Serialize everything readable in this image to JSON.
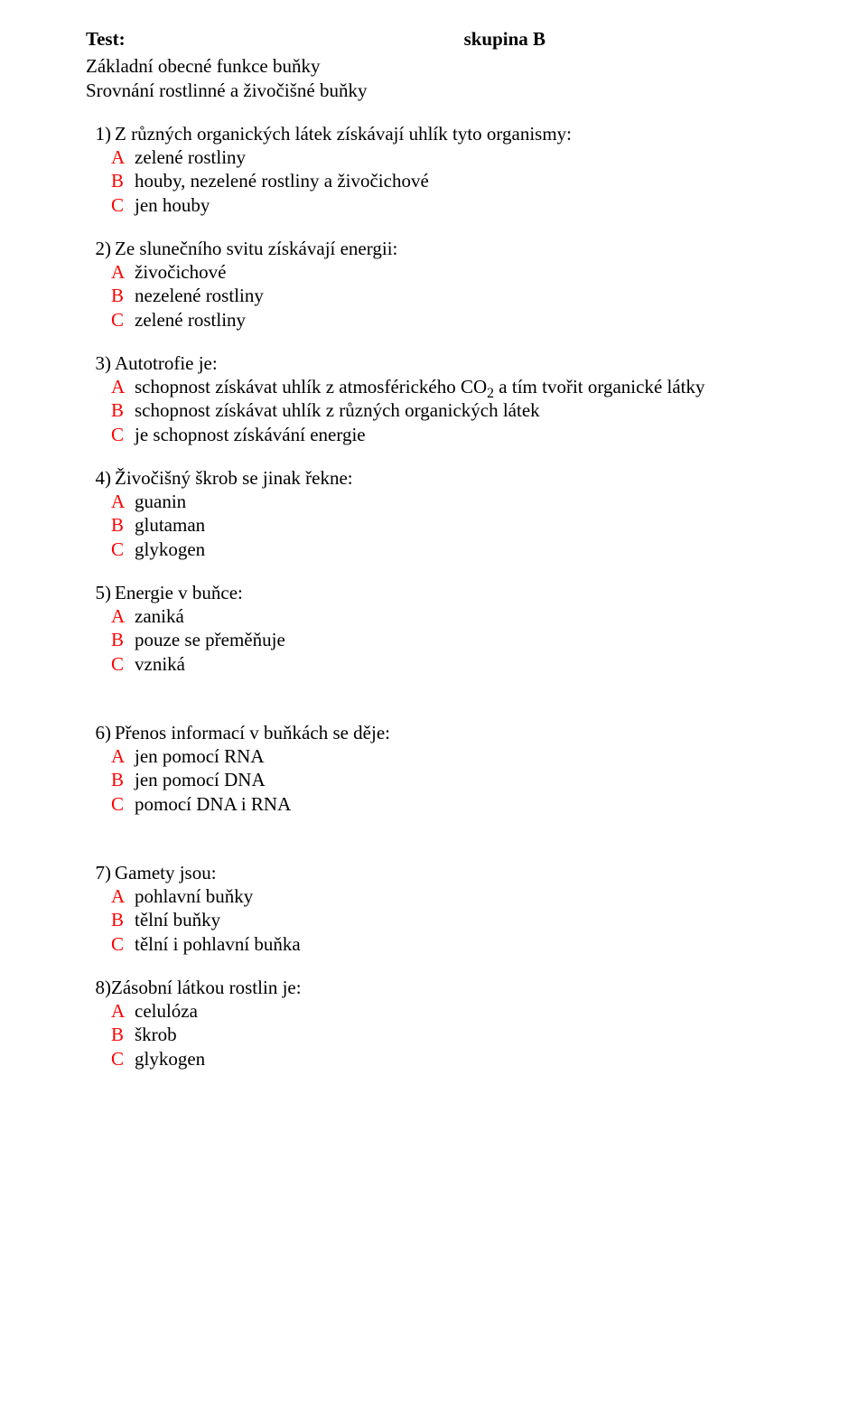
{
  "header": {
    "left": "Test:",
    "right": "skupina B"
  },
  "intro": [
    "Základní obecné funkce buňky",
    "Srovnání rostlinné a živočišné buňky"
  ],
  "questions": [
    {
      "num": "1)",
      "text": "Z různých organických látek získávají uhlík tyto organismy:",
      "opts": [
        {
          "l": "A",
          "t": "zelené rostliny"
        },
        {
          "l": "B",
          "t": "houby, nezelené rostliny a živočichové"
        },
        {
          "l": "C",
          "t": "jen houby"
        }
      ]
    },
    {
      "num": "2)",
      "text": "Ze slunečního svitu získávají energii:",
      "opts": [
        {
          "l": "A",
          "t": "živočichové"
        },
        {
          "l": "B",
          "t": "nezelené rostliny"
        },
        {
          "l": "C",
          "t": "zelené rostliny"
        }
      ]
    },
    {
      "num": "3)",
      "text": "Autotrofie je:",
      "opts": [
        {
          "l": "A",
          "t_pre": "schopnost získávat uhlík z atmosférického CO",
          "t_sub": "2",
          "t_post": " a tím tvořit organické látky"
        },
        {
          "l": "B",
          "t": "schopnost získávat uhlík z různých organických látek"
        },
        {
          "l": "C",
          "t": "je schopnost získávání energie"
        }
      ]
    },
    {
      "num": "4)",
      "text": "Živočišný škrob se jinak řekne:",
      "opts": [
        {
          "l": "A",
          "t": "guanin"
        },
        {
          "l": "B",
          "t": "glutaman"
        },
        {
          "l": "C",
          "t": "glykogen"
        }
      ]
    },
    {
      "num": "5)",
      "text": "Energie v buňce:",
      "opts": [
        {
          "l": "A",
          "t": "zaniká"
        },
        {
          "l": "B",
          "t": " pouze se přeměňuje"
        },
        {
          "l": "C",
          "t": " vzniká"
        }
      ],
      "extra_gap": true
    },
    {
      "num": "6)",
      "text": "Přenos informací v buňkách se děje:",
      "opts": [
        {
          "l": "A",
          "t": "jen pomocí RNA"
        },
        {
          "l": "B",
          "t": "jen pomocí DNA"
        },
        {
          "l": "C",
          "t": "pomocí DNA i RNA"
        }
      ],
      "extra_gap": true
    },
    {
      "num": "7)",
      "text": "Gamety jsou:",
      "opts": [
        {
          "l": "A",
          "t": "pohlavní buňky"
        },
        {
          "l": "B",
          "t": "tělní buňky"
        },
        {
          "l": "C",
          "t": "tělní i pohlavní buňka"
        }
      ]
    },
    {
      "num": "8)",
      "text": "Zásobní látkou rostlin je:",
      "no_space": true,
      "opts": [
        {
          "l": "A",
          "t": "celulóza"
        },
        {
          "l": "B",
          "t": "škrob"
        },
        {
          "l": "C",
          "t": "glykogen"
        }
      ]
    }
  ]
}
